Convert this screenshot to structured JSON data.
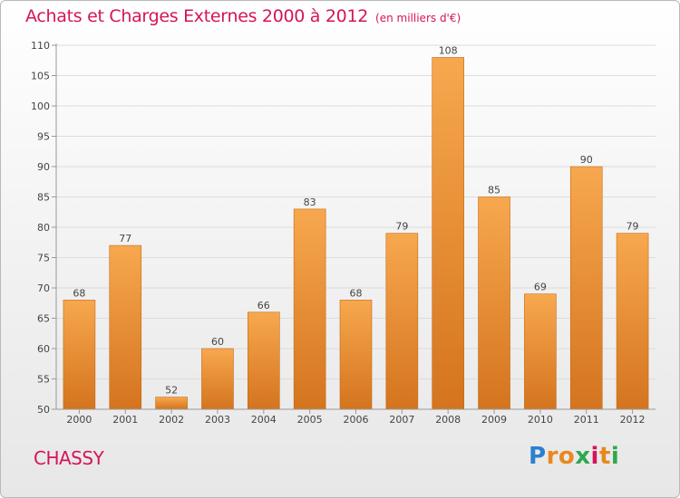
{
  "title": "Achats et Charges Externes 2000 à 2012",
  "unit": "(en milliers d'€)",
  "commune": "CHASSY",
  "logo": {
    "text": "Proxiti",
    "colors": [
      "#2b7fd0",
      "#e8891e",
      "#e8891e",
      "#2fa84f",
      "#d6145a",
      "#e8891e",
      "#2fa84f"
    ]
  },
  "colors": {
    "title": "#d6145a",
    "bar_top": "#f7a84e",
    "bar_bottom": "#d4741e",
    "grid": "#dcdcdc",
    "axis": "#999999",
    "label": "#444444"
  },
  "chart_data": {
    "type": "bar",
    "title": "Achats et Charges Externes 2000 à 2012",
    "ylabel": "(en milliers d'€)",
    "xlabel": "",
    "categories": [
      "2000",
      "2001",
      "2002",
      "2003",
      "2004",
      "2005",
      "2006",
      "2007",
      "2008",
      "2009",
      "2010",
      "2011",
      "2012"
    ],
    "values": [
      68,
      77,
      52,
      60,
      66,
      83,
      68,
      79,
      108,
      85,
      69,
      90,
      79
    ],
    "ylim": [
      50,
      110
    ],
    "yticks": [
      50,
      55,
      60,
      65,
      70,
      75,
      80,
      85,
      90,
      95,
      100,
      105,
      110
    ],
    "grid": true,
    "data_labels": true
  }
}
